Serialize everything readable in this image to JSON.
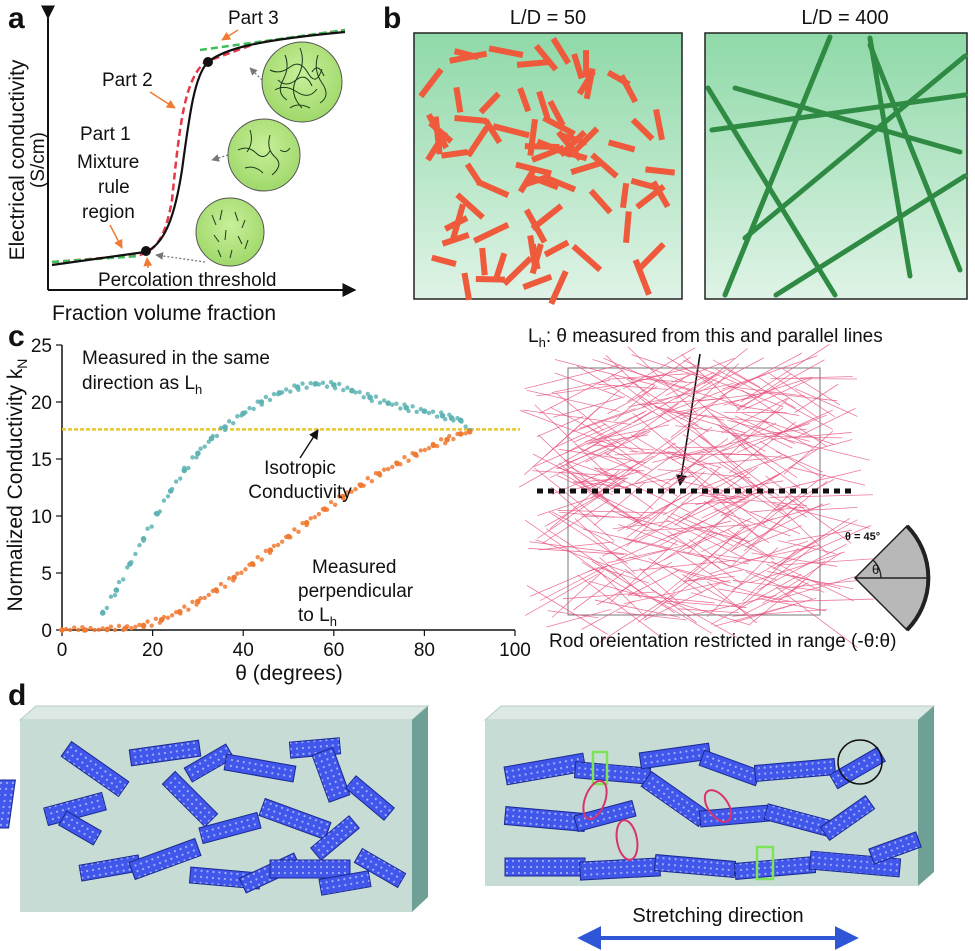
{
  "panels": {
    "a": {
      "letter": "a",
      "ylabel_line1": "Electrical conductivity",
      "ylabel_line2": "(S/cm)",
      "xlabel": "Fraction volume fraction",
      "part1": "Part 1",
      "mixture1": "Mixture",
      "mixture2": "rule",
      "mixture3": "region",
      "part2": "Part 2",
      "part3": "Part 3",
      "percolation": "Percolation threshold"
    },
    "b": {
      "letter": "b",
      "left_title": "L/D = 50",
      "right_title": "L/D = 400"
    },
    "c": {
      "letter": "c",
      "ylabel": "Normalized Conductivity k",
      "ylabel_sub": "N",
      "xlabel": "θ (degrees)",
      "measured_same1": "Measured in the same",
      "measured_same2": "direction as L",
      "measured_same2_sub": "h",
      "isotropic1": "Isotropic",
      "isotropic2": "Conductivity",
      "perp1": "Measured",
      "perp2": "perpendicular",
      "perp3": "to L",
      "perp3_sub": "h",
      "right_title_pre": "L",
      "right_title_sub": "h",
      "right_title_post": ": θ measured from this and parallel lines",
      "right_caption": "Rod oreientation restricted in range (-θ:θ)",
      "theta_inset": "θ = 45°",
      "theta_symbol": "θ"
    },
    "d": {
      "letter": "d",
      "stretching": "Stretching direction"
    }
  },
  "chart_data": {
    "type": "scatter",
    "xlabel": "θ (degrees)",
    "ylabel": "Normalized Conductivity kN",
    "xlim": [
      0,
      100
    ],
    "ylim": [
      0,
      25
    ],
    "xticks": [
      "0",
      "20",
      "40",
      "60",
      "80",
      "100"
    ],
    "yticks": [
      "0",
      "5",
      "10",
      "15",
      "20",
      "25"
    ],
    "isotropic_value": 17.6,
    "series": [
      {
        "name": "Measured in the same direction as Lh",
        "color": "#5fb3b3",
        "x": [
          9,
          12,
          15,
          18,
          21,
          24,
          27,
          30,
          33,
          36,
          40,
          44,
          48,
          52,
          56,
          60,
          64,
          68,
          72,
          76,
          80,
          84,
          86,
          88,
          90
        ],
        "y": [
          1.5,
          3.5,
          5.8,
          8.0,
          10.2,
          12.2,
          14.0,
          15.5,
          16.8,
          17.8,
          19.0,
          20.0,
          20.8,
          21.3,
          21.6,
          21.5,
          21.0,
          20.4,
          19.9,
          19.5,
          19.2,
          18.8,
          18.6,
          18.4,
          17.5
        ]
      },
      {
        "name": "Measured perpendicular to Lh",
        "color": "#f07a33",
        "x": [
          0,
          5,
          10,
          14,
          18,
          22,
          26,
          30,
          34,
          38,
          42,
          46,
          50,
          54,
          58,
          62,
          66,
          70,
          74,
          78,
          82,
          85,
          88,
          90
        ],
        "y": [
          0,
          0,
          0.05,
          0.15,
          0.4,
          0.9,
          1.6,
          2.5,
          3.5,
          4.6,
          5.8,
          7.0,
          8.2,
          9.4,
          10.6,
          11.7,
          12.7,
          13.7,
          14.6,
          15.4,
          16.2,
          16.7,
          17.2,
          17.4
        ]
      }
    ]
  },
  "colors": {
    "orange_rod": "#ee5a3b",
    "green_rod": "#2f8a43",
    "panel_bg": "#bfe6c9",
    "blue_sheet": "#3f4fe6",
    "block_face": "#c8dcd6",
    "block_side": "#6fa096"
  }
}
